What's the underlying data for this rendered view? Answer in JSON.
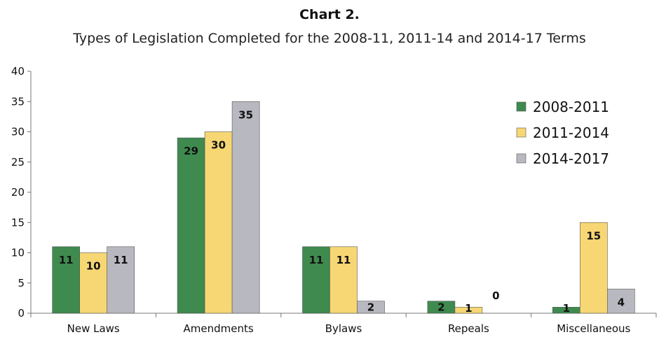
{
  "chart_data": {
    "type": "bar",
    "title": "Chart 2.",
    "subtitle": "Types of Legislation Completed for the 2008-11, 2011-14 and 2014-17 Terms",
    "categories": [
      "New Laws",
      "Amendments",
      "Bylaws",
      "Repeals",
      "Miscellaneous"
    ],
    "series": [
      {
        "name": "2008-2011",
        "values": [
          11,
          29,
          11,
          2,
          1
        ],
        "color": "#3f8a4f"
      },
      {
        "name": "2011-2014",
        "values": [
          10,
          30,
          11,
          1,
          15
        ],
        "color": "#f7d774"
      },
      {
        "name": "2014-2017",
        "values": [
          11,
          35,
          2,
          0,
          4
        ],
        "color": "#b8b8c0"
      }
    ],
    "ylim": [
      0,
      40
    ],
    "yticks": [
      0,
      5,
      10,
      15,
      20,
      25,
      30,
      35,
      40
    ],
    "grid": false,
    "legend_position": "top-right",
    "data_labels": true
  }
}
